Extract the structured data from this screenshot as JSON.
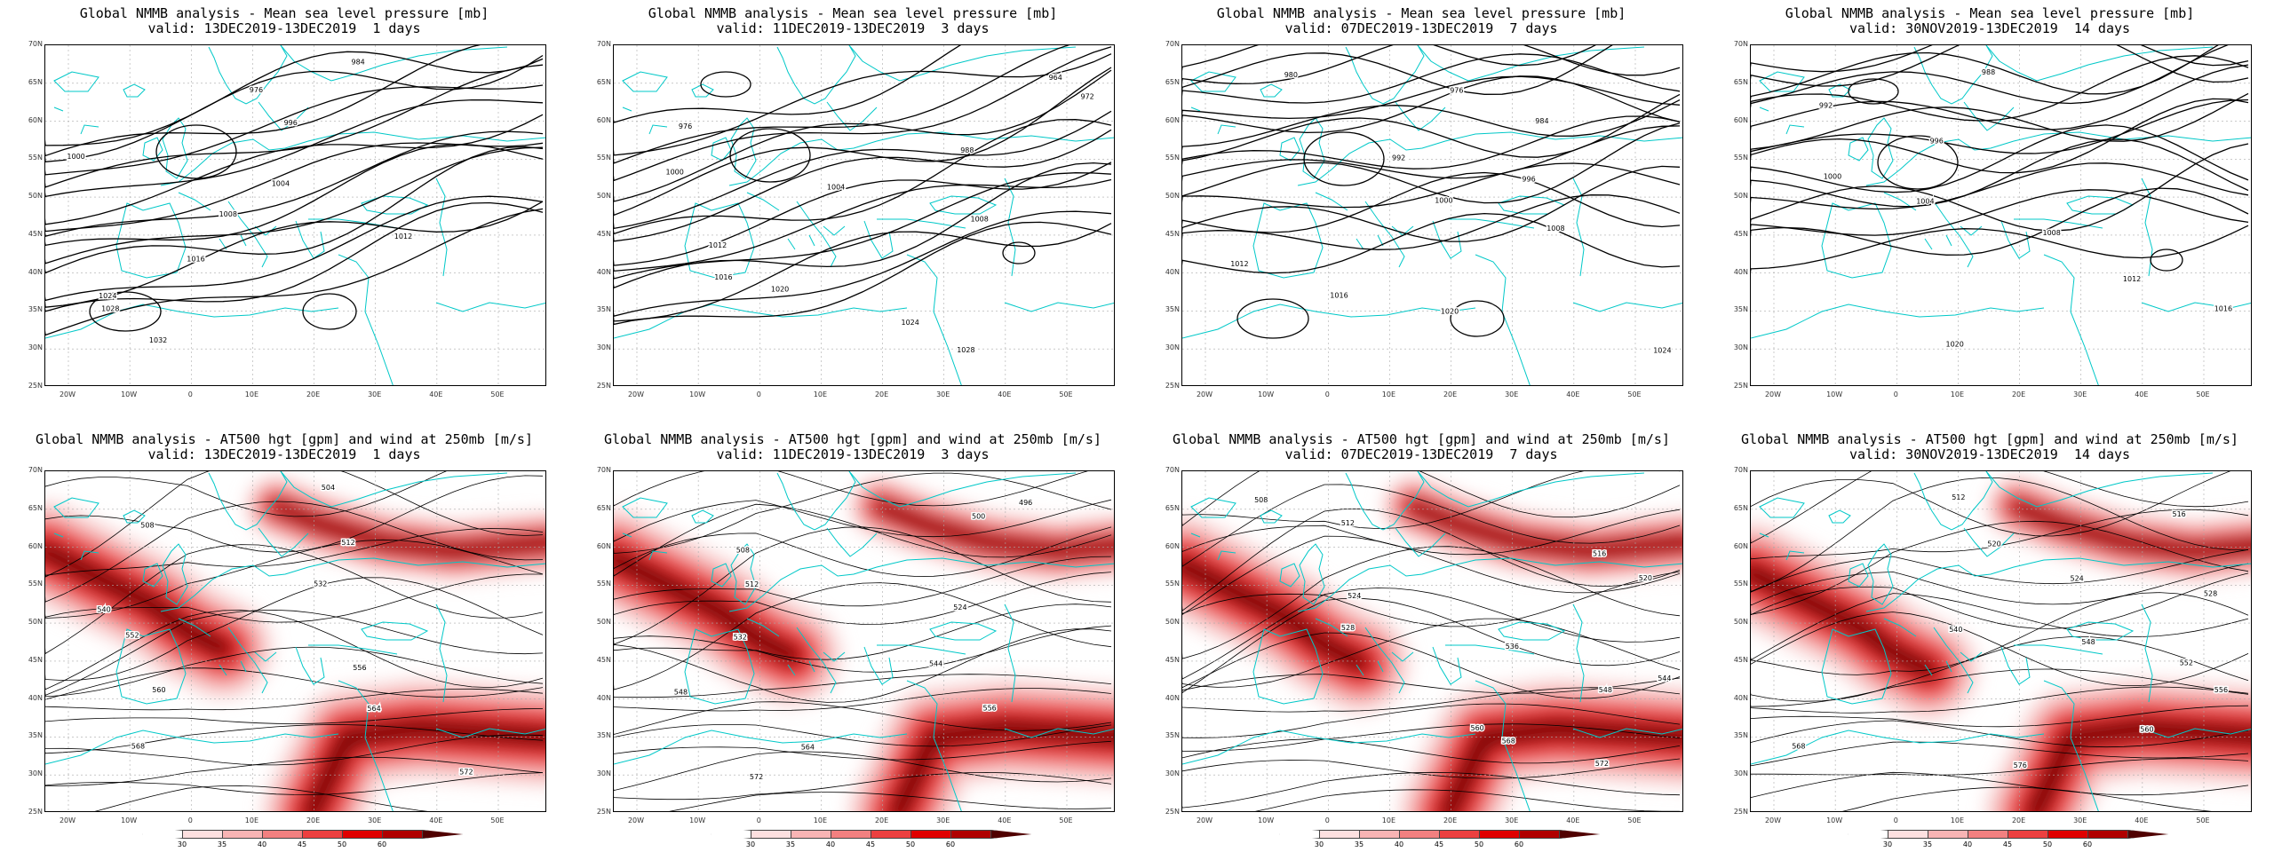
{
  "panels": [
    {
      "title": "Global NMMB analysis - Mean sea level pressure [mb]",
      "subtitle": "valid: 13DEC2019-13DEC2019  1 days",
      "type": "mslp"
    },
    {
      "title": "Global NMMB analysis - Mean sea level pressure [mb]",
      "subtitle": "valid: 11DEC2019-13DEC2019  3 days",
      "type": "mslp"
    },
    {
      "title": "Global NMMB analysis - Mean sea level pressure [mb]",
      "subtitle": "valid: 07DEC2019-13DEC2019  7 days",
      "type": "mslp"
    },
    {
      "title": "Global NMMB analysis - Mean sea level pressure [mb]",
      "subtitle": "valid: 30NOV2019-13DEC2019  14 days",
      "type": "mslp"
    },
    {
      "title": "Global NMMB analysis - AT500 hgt [gpm] and wind at 250mb [m/s]",
      "subtitle": "valid: 13DEC2019-13DEC2019  1 days",
      "type": "hgt"
    },
    {
      "title": "Global NMMB analysis - AT500 hgt [gpm] and wind at 250mb [m/s]",
      "subtitle": "valid: 11DEC2019-13DEC2019  3 days",
      "type": "hgt"
    },
    {
      "title": "Global NMMB analysis - AT500 hgt [gpm] and wind at 250mb [m/s]",
      "subtitle": "valid: 07DEC2019-13DEC2019  7 days",
      "type": "hgt"
    },
    {
      "title": "Global NMMB analysis - AT500 hgt [gpm] and wind at 250mb [m/s]",
      "subtitle": "valid: 30NOV2019-13DEC2019  14 days",
      "type": "hgt"
    }
  ],
  "lat_labels": [
    "70N",
    "65N",
    "60N",
    "55N",
    "50N",
    "45N",
    "40N",
    "35N",
    "30N",
    "25N"
  ],
  "lon_labels": [
    "20W",
    "10W",
    "0",
    "10E",
    "20E",
    "30E",
    "40E",
    "50E"
  ],
  "colorbar": {
    "values": [
      "30",
      "35",
      "40",
      "45",
      "50",
      "60"
    ],
    "colors": [
      "#ffffff",
      "#fde0e0",
      "#f8b4b4",
      "#f28080",
      "#ec4040",
      "#e00000",
      "#b00000",
      "#500000"
    ]
  },
  "colors": {
    "contour": "#000000",
    "coast": "#00c8c8",
    "jet_low": "#f7c6c6",
    "jet_mid": "#ee5555",
    "jet_high": "#e00000",
    "jet_core": "#5a0a0a"
  },
  "mslp_labels": [
    [
      "984",
      "976",
      "996",
      "1000",
      "1004",
      "1008",
      "1012",
      "1016",
      "1024",
      "1028",
      "1032"
    ],
    [
      "964",
      "972",
      "976",
      "988",
      "1000",
      "1004",
      "1008",
      "1012",
      "1016",
      "1020",
      "1024",
      "1028"
    ],
    [
      "980",
      "976",
      "984",
      "992",
      "996",
      "1000",
      "1008",
      "1012",
      "1016",
      "1020",
      "1024"
    ],
    [
      "988",
      "992",
      "996",
      "1000",
      "1004",
      "1008",
      "1012",
      "1016",
      "1020"
    ]
  ],
  "hgt_labels": [
    [
      "504",
      "508",
      "512",
      "532",
      "540",
      "552",
      "556",
      "560",
      "564",
      "568",
      "572"
    ],
    [
      "496",
      "500",
      "508",
      "512",
      "524",
      "532",
      "544",
      "548",
      "556",
      "564",
      "572"
    ],
    [
      "508",
      "512",
      "516",
      "520",
      "524",
      "528",
      "536",
      "544",
      "548",
      "560",
      "568",
      "572"
    ],
    [
      "512",
      "516",
      "520",
      "524",
      "528",
      "540",
      "548",
      "552",
      "556",
      "560",
      "568",
      "576"
    ]
  ]
}
